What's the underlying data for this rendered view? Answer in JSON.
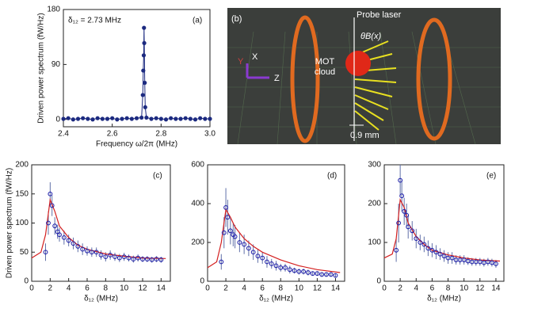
{
  "chart_data": [
    {
      "type": "line",
      "panel_label": "(a)",
      "annotation": "δ₁₂ = 2.73 MHz",
      "x_label": "Frequency ω/2π  (MHz)",
      "y_label": "Driven power spectrum (fW/Hz)",
      "color": "#1c2a80",
      "x": [
        2.4,
        2.42,
        2.44,
        2.46,
        2.48,
        2.5,
        2.52,
        2.54,
        2.56,
        2.58,
        2.6,
        2.62,
        2.64,
        2.66,
        2.68,
        2.7,
        2.72,
        2.725,
        2.727,
        2.729,
        2.73,
        2.731,
        2.733,
        2.735,
        2.74,
        2.76,
        2.78,
        2.8,
        2.82,
        2.84,
        2.86,
        2.88,
        2.9,
        2.92,
        2.94,
        2.96,
        2.98,
        3.0
      ],
      "values": [
        1,
        2,
        0,
        1,
        2,
        1,
        0,
        2,
        1,
        1,
        2,
        0,
        1,
        2,
        1,
        2,
        3,
        40,
        80,
        105,
        150,
        125,
        60,
        20,
        3,
        1,
        2,
        1,
        0,
        2,
        1,
        1,
        2,
        1,
        0,
        2,
        1,
        1
      ],
      "xlim": [
        2.4,
        3.0
      ],
      "xticks": [
        2.4,
        2.6,
        2.8,
        {
          "value": 3,
          "label": "3.0"
        }
      ],
      "ylim": [
        -12,
        180
      ],
      "yticks": [
        0,
        90,
        180
      ]
    },
    {
      "type": "scatter",
      "panel_label": "(c)",
      "x_label": "δ₁₂ (MHz)",
      "y_label": "Driven power spectrum (fW/Hz)",
      "color": "#1a1aa8",
      "error_color": "#6070a8",
      "x": [
        1.5,
        1.8,
        2.0,
        2.2,
        2.5,
        2.8,
        3.0,
        3.5,
        4,
        4.5,
        5,
        5.5,
        6,
        6.5,
        7,
        7.5,
        8,
        8.5,
        9,
        9.5,
        10,
        10.5,
        11,
        11.5,
        12,
        12.5,
        13,
        13.5,
        14
      ],
      "values": [
        50,
        100,
        150,
        130,
        95,
        85,
        80,
        75,
        70,
        65,
        60,
        55,
        52,
        50,
        50,
        45,
        42,
        45,
        42,
        40,
        42,
        40,
        38,
        40,
        38,
        38,
        37,
        38,
        37
      ],
      "errors": [
        15,
        20,
        20,
        18,
        15,
        12,
        12,
        12,
        10,
        10,
        10,
        10,
        8,
        8,
        8,
        8,
        8,
        8,
        7,
        7,
        7,
        6,
        6,
        6,
        5,
        5,
        5,
        5,
        5
      ],
      "fit": {
        "color": "#d42020",
        "x": [
          0,
          1,
          1.5,
          2,
          2.5,
          3,
          4,
          5,
          6,
          8,
          10,
          12,
          14.5
        ],
        "values": [
          40,
          50,
          80,
          140,
          120,
          95,
          75,
          62,
          55,
          47,
          43,
          40,
          39
        ]
      },
      "xlim": [
        0,
        15
      ],
      "xticks": [
        0,
        2,
        4,
        6,
        8,
        10,
        12,
        14
      ],
      "ylim": [
        0,
        200
      ],
      "yticks": [
        0,
        50,
        100,
        150,
        200
      ]
    },
    {
      "type": "scatter",
      "panel_label": "(d)",
      "x_label": "δ₁₂ (MHz)",
      "color": "#1a1aa8",
      "error_color": "#6070a8",
      "x": [
        1.5,
        1.8,
        2.0,
        2.2,
        2.5,
        2.8,
        3.0,
        3.5,
        4,
        4.5,
        5,
        5.5,
        6,
        6.5,
        7,
        7.5,
        8,
        8.5,
        9,
        9.5,
        10,
        10.5,
        11,
        11.5,
        12,
        12.5,
        13,
        13.5,
        14
      ],
      "values": [
        100,
        250,
        380,
        330,
        260,
        240,
        230,
        200,
        190,
        170,
        150,
        130,
        120,
        100,
        90,
        80,
        70,
        70,
        60,
        55,
        50,
        50,
        45,
        40,
        40,
        35,
        35,
        35,
        30
      ],
      "errors": [
        40,
        80,
        100,
        90,
        70,
        60,
        60,
        50,
        50,
        40,
        40,
        35,
        30,
        30,
        25,
        25,
        20,
        20,
        20,
        15,
        15,
        15,
        15,
        10,
        10,
        10,
        10,
        10,
        10
      ],
      "fit": {
        "color": "#d42020",
        "x": [
          0,
          1,
          1.5,
          2,
          2.5,
          3,
          4,
          5,
          6,
          8,
          10,
          12,
          14.5
        ],
        "values": [
          70,
          100,
          200,
          370,
          330,
          280,
          220,
          180,
          150,
          110,
          80,
          60,
          45
        ]
      },
      "xlim": [
        0,
        15
      ],
      "xticks": [
        0,
        2,
        4,
        6,
        8,
        10,
        12,
        14
      ],
      "ylim": [
        0,
        600
      ],
      "yticks": [
        0,
        200,
        400,
        600
      ]
    },
    {
      "type": "scatter",
      "panel_label": "(e)",
      "x_label": "δ₁₂ (MHz)",
      "color": "#1a1aa8",
      "error_color": "#6070a8",
      "x": [
        1.5,
        1.8,
        2.0,
        2.2,
        2.5,
        2.8,
        3.0,
        3.5,
        4,
        4.5,
        5,
        5.5,
        6,
        6.5,
        7,
        7.5,
        8,
        8.5,
        9,
        9.5,
        10,
        10.5,
        11,
        11.5,
        12,
        12.5,
        13,
        13.5,
        14
      ],
      "values": [
        80,
        150,
        260,
        220,
        180,
        170,
        140,
        130,
        110,
        100,
        95,
        85,
        80,
        75,
        70,
        65,
        60,
        60,
        55,
        55,
        55,
        52,
        50,
        50,
        50,
        48,
        50,
        48,
        45
      ],
      "errors": [
        30,
        50,
        40,
        40,
        35,
        30,
        30,
        25,
        25,
        20,
        20,
        20,
        18,
        18,
        15,
        15,
        15,
        15,
        12,
        12,
        12,
        10,
        10,
        10,
        10,
        10,
        10,
        10,
        10
      ],
      "fit": {
        "color": "#d42020",
        "x": [
          0,
          1,
          1.5,
          2,
          2.5,
          3,
          4,
          5,
          6,
          8,
          10,
          12,
          14.5
        ],
        "values": [
          60,
          70,
          110,
          210,
          190,
          150,
          115,
          95,
          80,
          68,
          60,
          55,
          52
        ]
      },
      "xlim": [
        0,
        15
      ],
      "xticks": [
        0,
        2,
        4,
        6,
        8,
        10,
        12,
        14
      ],
      "ylim": [
        0,
        300
      ],
      "yticks": [
        0,
        100,
        200,
        300
      ]
    }
  ],
  "diagram": {
    "panel_label": "(b)",
    "probe": "Probe laser",
    "angle": "θB(x)",
    "mot_1": "MOT",
    "mot_2": "cloud",
    "scale": "0.9 mm",
    "axis_y": "Y",
    "axis_x": "X",
    "axis_z": "Z"
  }
}
